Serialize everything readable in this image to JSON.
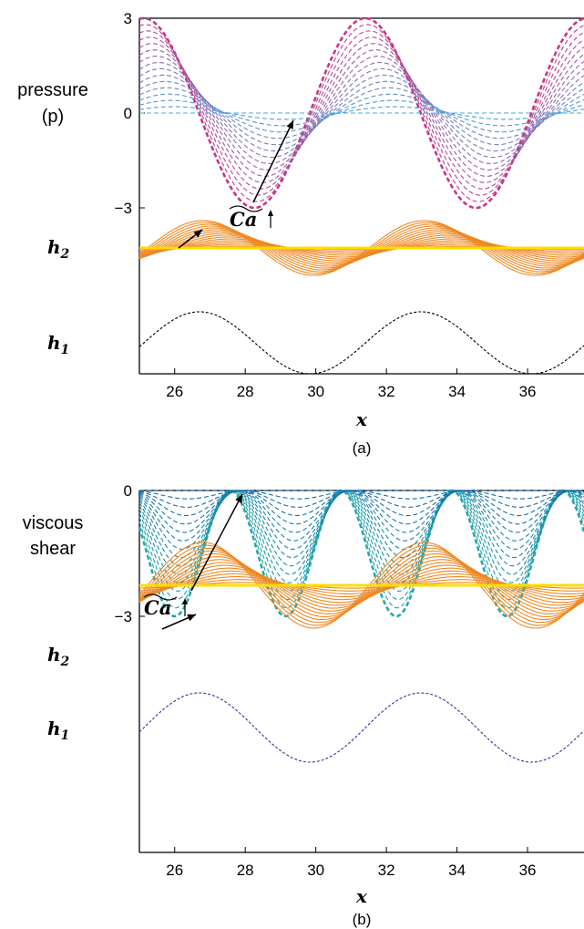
{
  "chart_data": [
    {
      "type": "line",
      "panel_label": "(a)",
      "ylabel_lines": [
        "pressure",
        "(p)"
      ],
      "xlabel": "x",
      "xlim": [
        25,
        37.6
      ],
      "xticks": [
        26,
        28,
        30,
        32,
        34,
        36
      ],
      "yticks": [
        3,
        0,
        -3
      ],
      "ylim": [
        -3,
        3
      ],
      "arrow_label": "Ca",
      "layer_labels": {
        "h2": "h2",
        "h1": "h1"
      },
      "series": [
        {
          "role": "field",
          "wavelength": 6.28,
          "peak_x": 31.4,
          "amplitude_range": [
            0,
            3
          ],
          "level_count": 16
        },
        {
          "role": "h2",
          "wavelength": 6.28,
          "peak_x_range": [
            26.8,
            28.0
          ],
          "amplitude_range": [
            0,
            1
          ],
          "level_count": 16
        },
        {
          "role": "h1",
          "wavelength": 6.28,
          "peak_x": 26.7,
          "amplitude": 1
        }
      ],
      "colors": {
        "field_start": "#cc3388",
        "field_end": "#44aadd",
        "h2_lines": "#ee8822",
        "h2_flat": "#ffdd00",
        "h1": "#000000"
      }
    },
    {
      "type": "line",
      "panel_label": "(b)",
      "ylabel_lines": [
        "viscous",
        "shear"
      ],
      "xlabel": "x",
      "xlim": [
        25,
        37.6
      ],
      "xticks": [
        26,
        28,
        30,
        32,
        34,
        36
      ],
      "yticks": [
        0,
        -3
      ],
      "ylim": [
        -3,
        0
      ],
      "arrow_label": "Ca",
      "layer_labels": {
        "h2": "h2",
        "h1": "h1"
      },
      "series": [
        {
          "role": "field",
          "wavelength": 3.14,
          "trough_x": 26.0,
          "amplitude_range": [
            0,
            3
          ],
          "level_count": 16
        },
        {
          "role": "h2",
          "wavelength": 6.28,
          "peak_x_range": [
            26.8,
            28.0
          ],
          "amplitude_range": [
            0,
            1
          ],
          "level_count": 16
        },
        {
          "role": "h1",
          "wavelength": 6.28,
          "peak_x": 26.7,
          "amplitude": 1
        }
      ],
      "colors": {
        "field_start": "#22aaaa",
        "field_end": "#1166aa",
        "h2_lines": "#ee8822",
        "h2_flat": "#ffdd00",
        "h1": "#333399"
      }
    }
  ]
}
